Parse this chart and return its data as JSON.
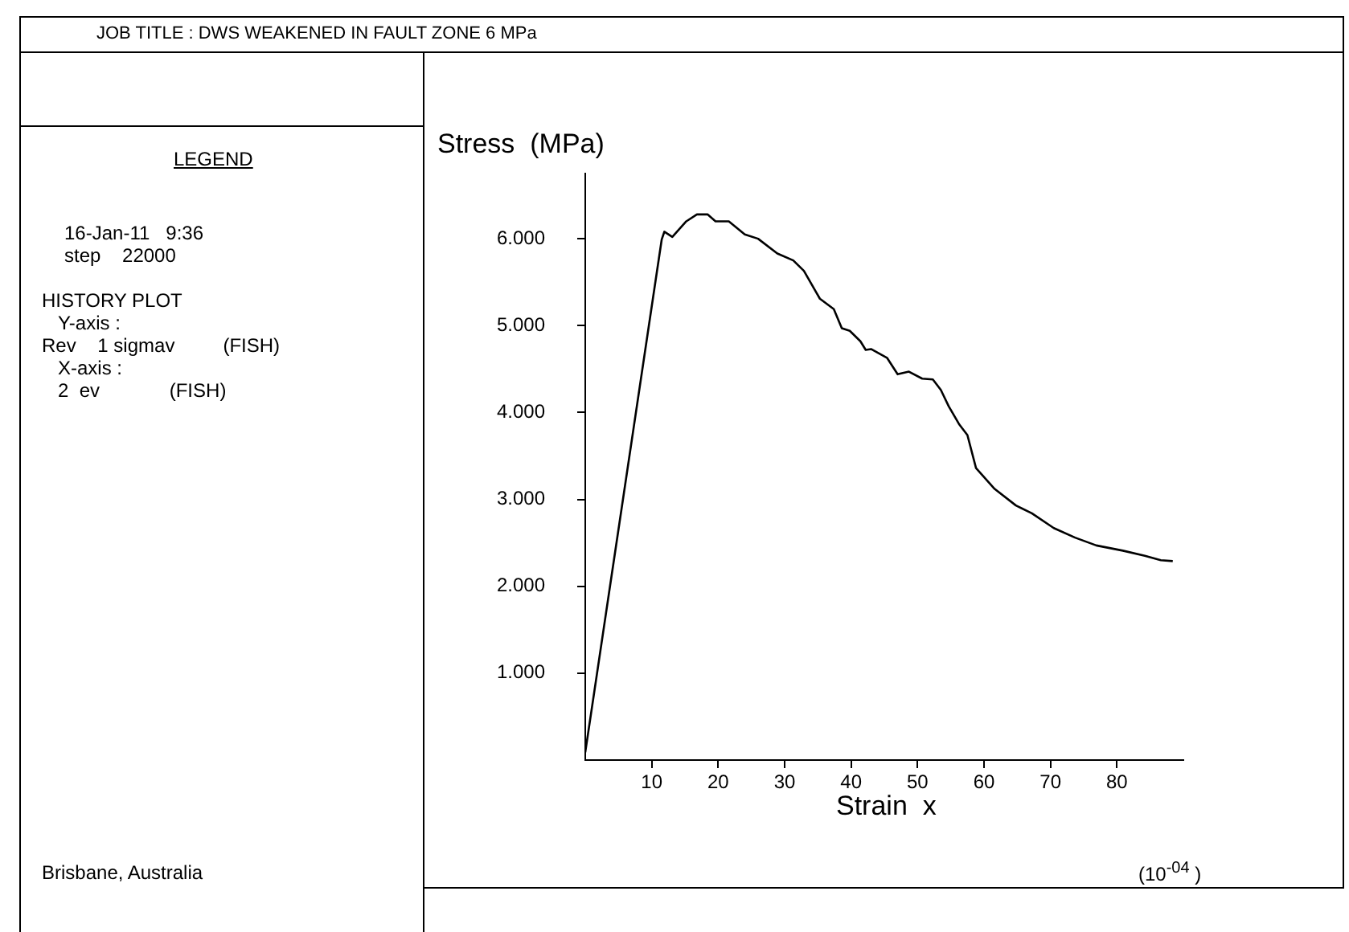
{
  "chart_data": {
    "type": "line",
    "title": "JOB TITLE : DWS WEAKENED IN FAULT ZONE 6 MPa",
    "xlabel": "Strain  x",
    "ylabel": "Stress  (MPa)",
    "annotations": [
      "LEGEND",
      "16-Jan-11   9:36",
      "step    22000",
      "HISTORY PLOT",
      "Y-axis :",
      "Rev    1 sigmav         (FISH)",
      "X-axis :",
      "2  ev             (FISH)",
      "Brisbane, Australia",
      "(10$^{-04}$ )"
    ],
    "x": [
      0,
      11.5,
      11.9,
      13.1,
      15.2,
      16.8,
      18.4,
      19.6,
      21.6,
      24.0,
      26.0,
      28.9,
      31.3,
      32.9,
      35.3,
      37.4,
      38.6,
      39.8,
      41.4,
      42.2,
      43.0,
      45.4,
      47.0,
      48.7,
      50.7,
      52.3,
      53.5,
      54.7,
      56.3,
      57.5,
      58.8,
      61.6,
      64.8,
      67.2,
      70.5,
      73.7,
      76.9,
      80.9,
      84.2,
      86.6,
      88.4
    ],
    "series": [
      {
        "color": "#000000",
        "values": [
          0.09,
          5.99,
          6.08,
          6.02,
          6.2,
          6.28,
          6.28,
          6.2,
          6.2,
          6.05,
          6.0,
          5.83,
          5.75,
          5.63,
          5.31,
          5.19,
          4.97,
          4.94,
          4.82,
          4.72,
          4.73,
          4.63,
          4.44,
          4.47,
          4.39,
          4.38,
          4.26,
          4.07,
          3.86,
          3.74,
          3.36,
          3.12,
          2.93,
          2.84,
          2.67,
          2.56,
          2.47,
          2.41,
          2.35,
          2.3,
          2.29
        ]
      }
    ],
    "xlim": [
      0,
      90
    ],
    "xticks": [
      10,
      20,
      30,
      40,
      50,
      60,
      70,
      80
    ],
    "ylim": [
      0,
      6.75
    ],
    "yticks": [
      {
        "value": 1,
        "label": "1.000"
      },
      {
        "value": 2,
        "label": "2.000"
      },
      {
        "value": 3,
        "label": "3.000"
      },
      {
        "value": 4,
        "label": "4.000"
      },
      {
        "value": 5,
        "label": "5.000"
      },
      {
        "value": 6,
        "label": "6.000"
      }
    ],
    "grid": false,
    "legend": false,
    "marker": "none",
    "line_style": "solid"
  }
}
